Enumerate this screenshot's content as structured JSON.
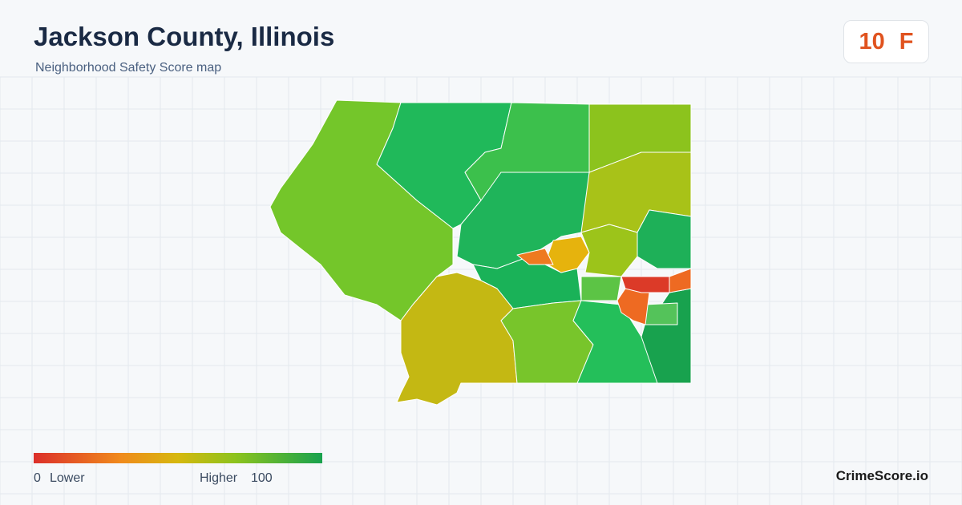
{
  "header": {
    "title": "Jackson County, Illinois",
    "subtitle": "Neighborhood Safety Score map"
  },
  "score": {
    "value": 10,
    "grade": "F"
  },
  "legend": {
    "min": 0,
    "min_label": "Lower",
    "max_label": "Higher",
    "max": 100
  },
  "brand": "CrimeScore.io"
}
